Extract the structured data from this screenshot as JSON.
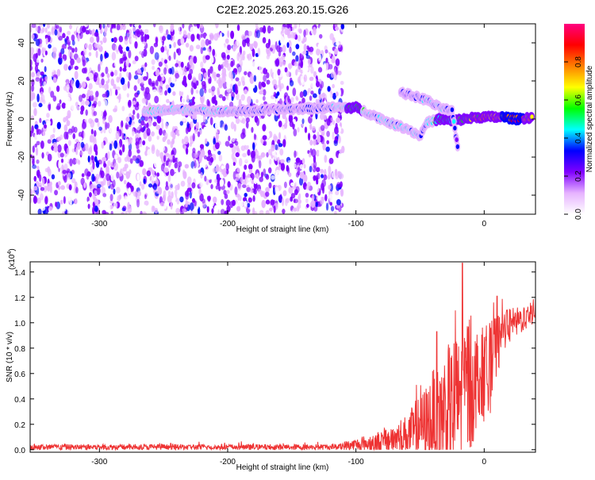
{
  "title": "C2E2.2025.263.20.15.G26",
  "chart_data": [
    {
      "type": "heatmap",
      "xlabel": "Height of straight line (km)",
      "ylabel": "Frequency (Hz)",
      "xlim": [
        -354,
        40
      ],
      "ylim": [
        -50,
        50
      ],
      "xticks": [
        -300,
        -200,
        -100,
        0
      ],
      "yticks": [
        -40,
        -20,
        0,
        20,
        40
      ],
      "colorbar": {
        "label": "Normalized spectral amplitude",
        "range": [
          0,
          1
        ],
        "ticks": [
          "0.0",
          "0.2",
          "0.4",
          "0.6",
          "0.8"
        ],
        "colors": [
          "#ffffff",
          "#e6b3ff",
          "#8000ff",
          "#0000ff",
          "#00ffff",
          "#00ff00",
          "#ffff00",
          "#ff8000",
          "#ff0000",
          "#ff0080"
        ]
      },
      "noise_region_x": [
        -354,
        -110
      ],
      "ridge": [
        {
          "x": -265,
          "y": 4,
          "amp": 0.45
        },
        {
          "x": -240,
          "y": 5,
          "amp": 0.45
        },
        {
          "x": -200,
          "y": 4,
          "amp": 0.35
        },
        {
          "x": -160,
          "y": 5,
          "amp": 0.3
        },
        {
          "x": -120,
          "y": 6,
          "amp": 0.35
        },
        {
          "x": -100,
          "y": 6,
          "amp": 0.55
        },
        {
          "x": -90,
          "y": 3,
          "amp": 0.4
        },
        {
          "x": -80,
          "y": 0,
          "amp": 0.45
        },
        {
          "x": -70,
          "y": -3,
          "amp": 0.45
        },
        {
          "x": -60,
          "y": -5,
          "amp": 0.45
        },
        {
          "x": -50,
          "y": -9,
          "amp": 0.4
        },
        {
          "x": -45,
          "y": -2,
          "amp": 0.4
        },
        {
          "x": -35,
          "y": 0,
          "amp": 0.5
        },
        {
          "x": -25,
          "y": -1,
          "amp": 0.5
        },
        {
          "x": -15,
          "y": 0,
          "amp": 0.6
        },
        {
          "x": -5,
          "y": 1,
          "amp": 0.7
        },
        {
          "x": 5,
          "y": 1,
          "amp": 0.75
        },
        {
          "x": 15,
          "y": 1,
          "amp": 0.8
        },
        {
          "x": 25,
          "y": 0,
          "amp": 0.95
        },
        {
          "x": 38,
          "y": 1,
          "amp": 0.6
        }
      ],
      "branch": [
        {
          "x": -65,
          "y": 14,
          "amp": 0.3
        },
        {
          "x": -55,
          "y": 12,
          "amp": 0.35
        },
        {
          "x": -45,
          "y": 10,
          "amp": 0.35
        },
        {
          "x": -35,
          "y": 6,
          "amp": 0.4
        },
        {
          "x": -25,
          "y": 4,
          "amp": 0.4
        },
        {
          "x": -20,
          "y": -18,
          "amp": 0.3
        }
      ]
    },
    {
      "type": "line",
      "xlabel": "Height of straight line (km)",
      "ylabel": "SNR (10 * v/v)",
      "y_exponent_label": "(x10",
      "y_exponent_power": "4",
      "y_exponent_close": ")",
      "xlim": [
        -354,
        40
      ],
      "ylim": [
        -0.02,
        1.48
      ],
      "xticks": [
        -300,
        -200,
        -100,
        0
      ],
      "yticks": [
        0.0,
        0.2,
        0.4,
        0.6,
        0.8,
        1.0,
        1.2,
        1.4
      ],
      "color": "#ee3333",
      "envelope": [
        {
          "x": -354,
          "base": 0.02,
          "spread": 0.03
        },
        {
          "x": -120,
          "base": 0.02,
          "spread": 0.03
        },
        {
          "x": -100,
          "base": 0.04,
          "spread": 0.06
        },
        {
          "x": -80,
          "base": 0.06,
          "spread": 0.12
        },
        {
          "x": -60,
          "base": 0.12,
          "spread": 0.2
        },
        {
          "x": -45,
          "base": 0.2,
          "spread": 0.4
        },
        {
          "x": -35,
          "base": 0.28,
          "spread": 0.6
        },
        {
          "x": -25,
          "base": 0.3,
          "spread": 0.7
        },
        {
          "x": -15,
          "base": 0.5,
          "spread": 0.85
        },
        {
          "x": -5,
          "base": 0.55,
          "spread": 0.5
        },
        {
          "x": 5,
          "base": 0.65,
          "spread": 0.45
        },
        {
          "x": 15,
          "base": 0.95,
          "spread": 0.2
        },
        {
          "x": 25,
          "base": 1.0,
          "spread": 0.15
        },
        {
          "x": 40,
          "base": 1.1,
          "spread": 0.12
        }
      ],
      "peaks": [
        {
          "x": -17,
          "y": 1.47
        },
        {
          "x": -37,
          "y": 0.93
        },
        {
          "x": -5,
          "y": 0.82
        },
        {
          "x": 10,
          "y": 1.21
        },
        {
          "x": 40,
          "y": 1.19
        }
      ]
    }
  ]
}
